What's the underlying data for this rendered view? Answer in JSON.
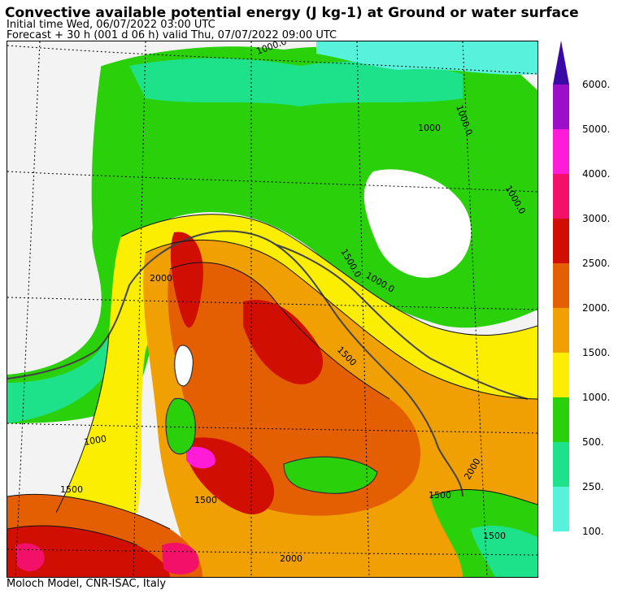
{
  "header": {
    "title": "Convective available potential energy (J kg-1) at Ground or water surface",
    "initial_time": "Initial time  Wed, 06/07/2022  03:00 UTC",
    "forecast": "Forecast  +  30 h  (001 d 06 h)  valid Thu, 07/07/2022 09:00 UTC"
  },
  "footer": {
    "credit": "Moloch Model, CNR-ISAC, Italy"
  },
  "map": {
    "contour_labels": [
      "1000.0",
      "1000.0",
      "1000.0",
      "1500.0",
      "1000.0",
      "1500",
      "1000",
      "2000",
      "1500",
      "1500",
      "1500",
      "2000",
      "2000",
      "1000",
      "1500"
    ]
  },
  "colorbar": {
    "levels": [
      {
        "label": "6000.",
        "color": "#9a10c8"
      },
      {
        "label": "5000.",
        "color": "#ff1cd6"
      },
      {
        "label": "4000.",
        "color": "#f21068"
      },
      {
        "label": "3000.",
        "color": "#d00e02"
      },
      {
        "label": "2500.",
        "color": "#e45e02"
      },
      {
        "label": "2000.",
        "color": "#f0a002"
      },
      {
        "label": "1500.",
        "color": "#fcee00"
      },
      {
        "label": "1000.",
        "color": "#2ad00a"
      },
      {
        "label": "500.",
        "color": "#1ee28a"
      },
      {
        "label": "250.",
        "color": "#58f2dc"
      },
      {
        "label": "100.",
        "color": "#ffffff"
      }
    ],
    "top_color": "#3a0aa6"
  }
}
